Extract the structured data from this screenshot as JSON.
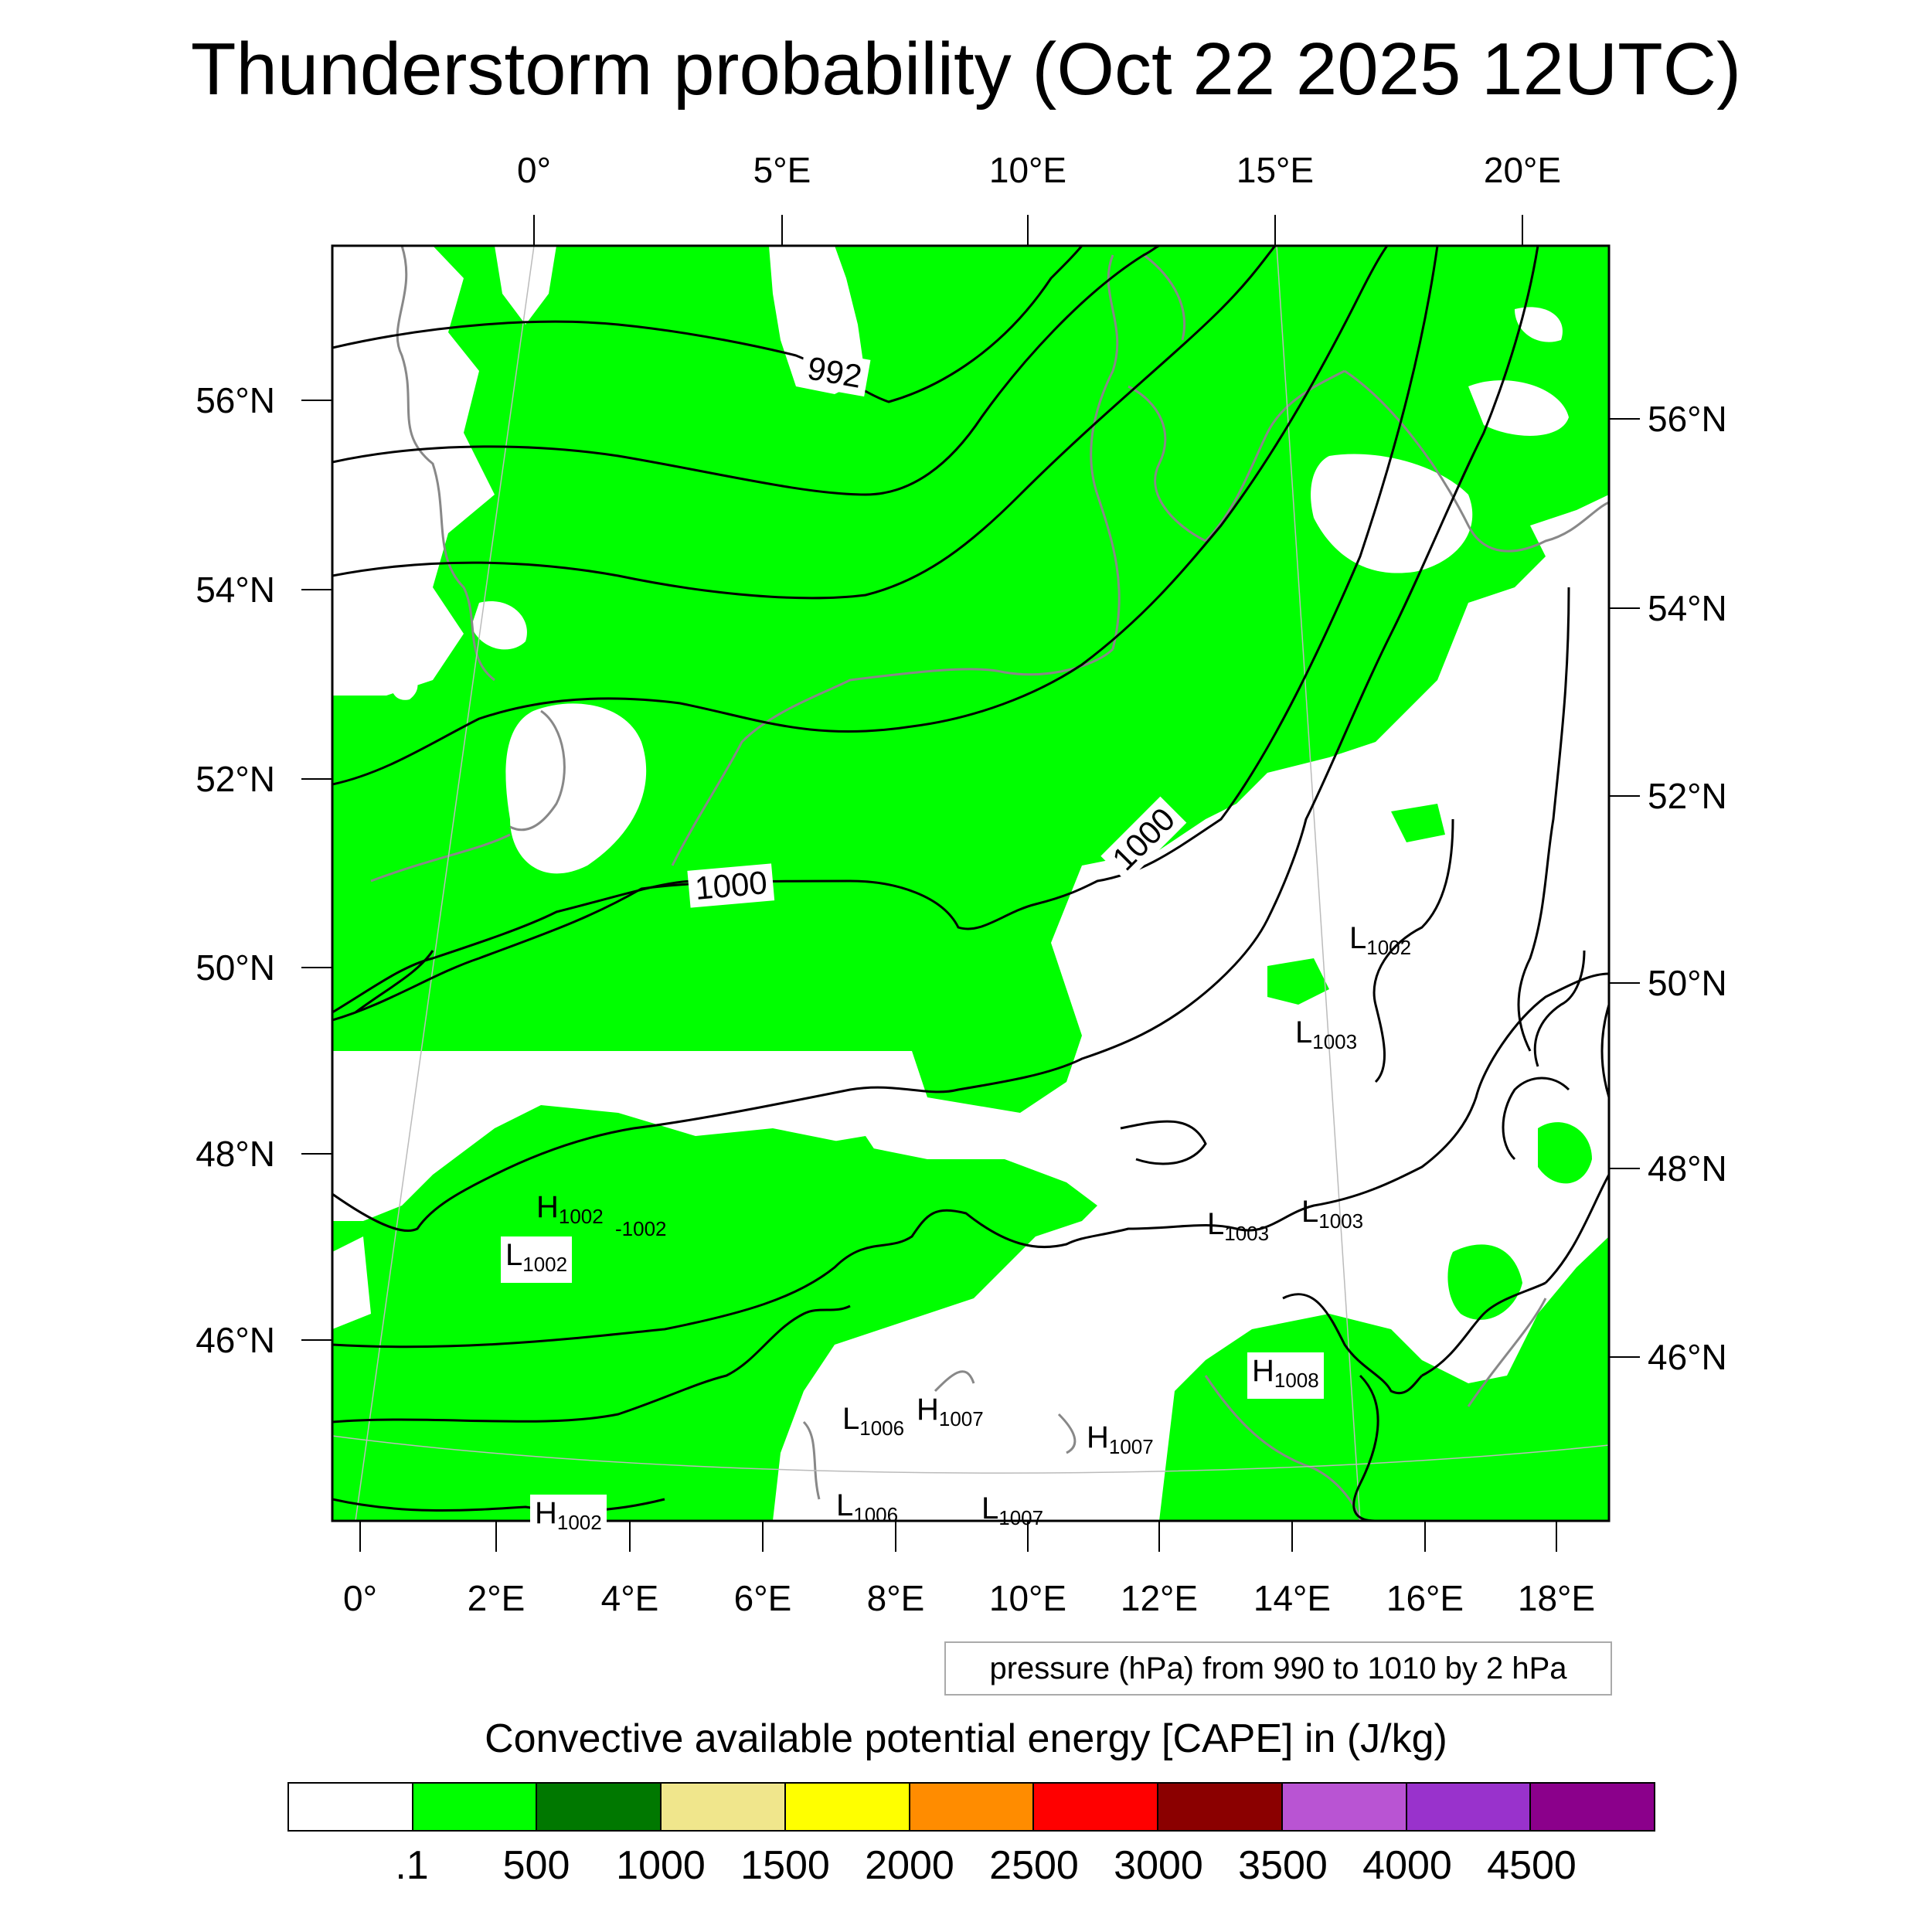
{
  "title": "Thunderstorm probability (Oct 22 2025 12UTC)",
  "map": {
    "top_lon_labels": [
      "0°",
      "5°E",
      "10°E",
      "15°E",
      "20°E"
    ],
    "bottom_lon_labels": [
      "0°",
      "2°E",
      "4°E",
      "6°E",
      "8°E",
      "10°E",
      "12°E",
      "14°E",
      "16°E",
      "18°E"
    ],
    "left_lat_labels": [
      "56°N",
      "54°N",
      "52°N",
      "50°N",
      "48°N",
      "46°N"
    ],
    "right_lat_labels": [
      "56°N",
      "54°N",
      "52°N",
      "50°N",
      "48°N",
      "46°N"
    ],
    "contour_labels": [
      "992",
      "1000",
      "1000"
    ],
    "pressure_centers": [
      {
        "letter": "H",
        "value": "1002"
      },
      {
        "letter": "",
        "value": "-1002"
      },
      {
        "letter": "L",
        "value": "1002"
      },
      {
        "letter": "L",
        "value": "1002"
      },
      {
        "letter": "L",
        "value": "1003"
      },
      {
        "letter": "L",
        "value": "1003"
      },
      {
        "letter": "L",
        "value": "1003"
      },
      {
        "letter": "H",
        "value": "1008"
      },
      {
        "letter": "L",
        "value": "1006"
      },
      {
        "letter": "H",
        "value": "1007"
      },
      {
        "letter": "H",
        "value": "1007"
      },
      {
        "letter": "L",
        "value": "1006"
      },
      {
        "letter": "L",
        "value": "1007"
      },
      {
        "letter": "H",
        "value": "1002"
      }
    ],
    "contour_info": "pressure (hPa) from 990 to 1010 by 2 hPa"
  },
  "colorbar": {
    "title": "Convective available potential energy [CAPE] in (J/kg)",
    "colors": [
      "#ffffff",
      "#00ff00",
      "#007800",
      "#f0e68c",
      "#ffff00",
      "#ff8c00",
      "#ff0000",
      "#8b0000",
      "#b954d3",
      "#9932cc",
      "#8b008b"
    ],
    "tick_labels": [
      ".1",
      "500",
      "1000",
      "1500",
      "2000",
      "2500",
      "3000",
      "3500",
      "4000",
      "4500"
    ]
  }
}
